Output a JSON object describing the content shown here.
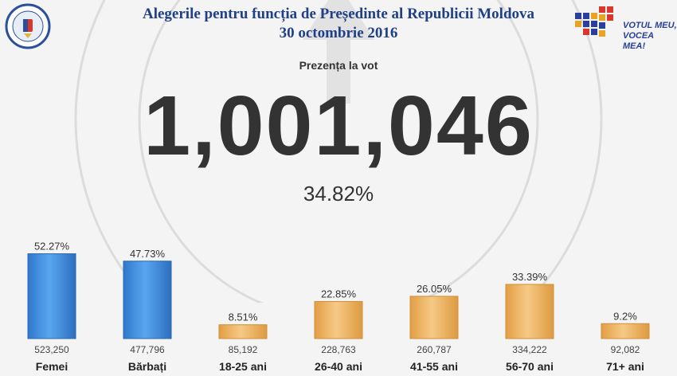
{
  "header": {
    "title_line1": "Alegerile pentru funcția de Președinte al Republicii Moldova",
    "title_line2": "30 octombrie 2016"
  },
  "logos": {
    "votul_line1": "VOTUL MEU,",
    "votul_line2": "VOCEA MEA!"
  },
  "turnout": {
    "label": "Prezența la vot",
    "total": "1,001,046",
    "percent": "34.82%"
  },
  "colors": {
    "gender_bar": "#3d8ee0",
    "age_bar": "#f0b665",
    "title": "#1f3f87",
    "text": "#333333"
  },
  "chart_data": {
    "type": "bar",
    "categories": [
      "Femei",
      "Bărbați",
      "18-25 ani",
      "26-40 ani",
      "41-55 ani",
      "56-70 ani",
      "71+ ani"
    ],
    "values": [
      52.27,
      47.73,
      8.51,
      22.85,
      26.05,
      33.39,
      9.2
    ],
    "value_labels": [
      "52.27%",
      "47.73%",
      "8.51%",
      "22.85%",
      "26.05%",
      "33.39%",
      "9.2%"
    ],
    "counts": [
      "523,250",
      "477,796",
      "85,192",
      "228,763",
      "260,787",
      "334,222",
      "92,082"
    ],
    "groups": [
      "gender",
      "gender",
      "age",
      "age",
      "age",
      "age",
      "age"
    ],
    "ylim": [
      0,
      55
    ],
    "grid": false
  }
}
